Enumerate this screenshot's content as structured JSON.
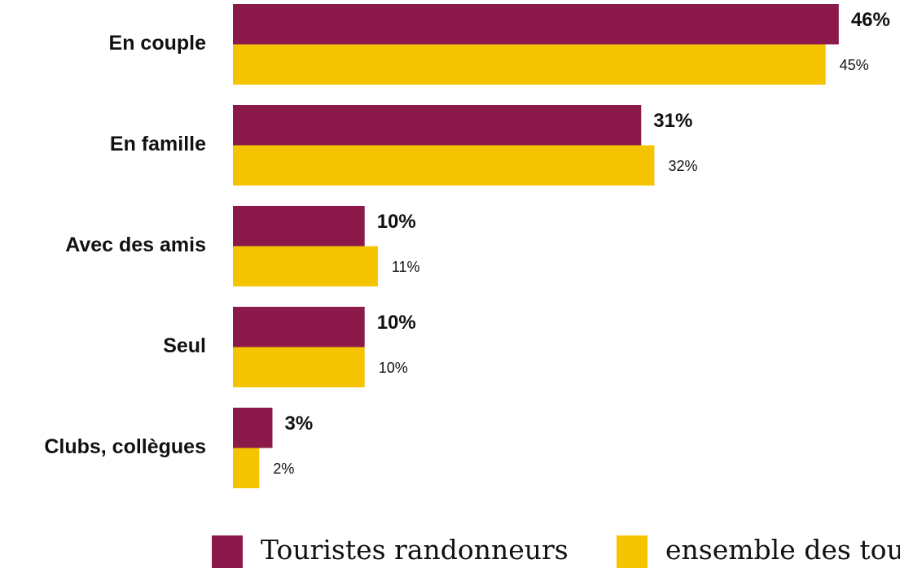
{
  "chart_data": {
    "type": "bar",
    "orientation": "horizontal",
    "categories": [
      "En couple",
      "En famille",
      "Avec des amis",
      "Seul",
      "Clubs, collègues"
    ],
    "series": [
      {
        "name": "Touristes randonneurs",
        "color": "#8b1a4b",
        "values": [
          46,
          31,
          10,
          10,
          3
        ],
        "value_labels": [
          "46%",
          "31%",
          "10%",
          "10%",
          "3%"
        ]
      },
      {
        "name": "ensemble des touristes",
        "color": "#f5c400",
        "values": [
          45,
          32,
          11,
          10,
          2
        ],
        "value_labels": [
          "45%",
          "32%",
          "11%",
          "10%",
          "2%"
        ]
      }
    ],
    "legend": "bottom"
  }
}
